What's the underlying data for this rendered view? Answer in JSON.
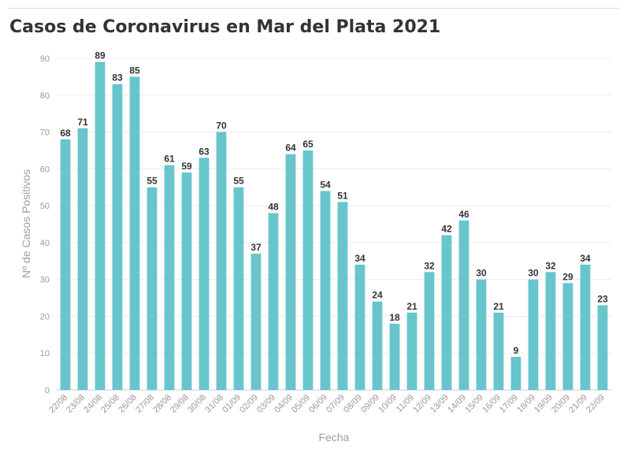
{
  "title": "Casos de Coronavirus en Mar del Plata 2021",
  "chart_data": {
    "type": "bar",
    "title": "Casos de Coronavirus en Mar del Plata 2021",
    "xlabel": "Fecha",
    "ylabel": "Nº de Casos Positivos",
    "ylim": [
      0,
      90
    ],
    "yticks": [
      0,
      10,
      20,
      30,
      40,
      50,
      60,
      70,
      80,
      90
    ],
    "grid": true,
    "bar_color": "#67c5cb",
    "categories": [
      "22/08",
      "23/08",
      "24/08",
      "25/08",
      "26/08",
      "27/08",
      "28/08",
      "29/08",
      "30/08",
      "31/08",
      "01/09",
      "02/09",
      "03/09",
      "04/09",
      "05/09",
      "06/09",
      "07/09",
      "08/09",
      "09/09",
      "10/09",
      "11/09",
      "12/09",
      "13/09",
      "14/09",
      "15/09",
      "16/09",
      "17/09",
      "18/09",
      "19/09",
      "20/09",
      "21/09",
      "22/09"
    ],
    "values": [
      68,
      71,
      89,
      83,
      85,
      55,
      61,
      59,
      63,
      70,
      55,
      37,
      48,
      64,
      65,
      54,
      51,
      34,
      24,
      18,
      21,
      32,
      42,
      46,
      30,
      21,
      9,
      30,
      32,
      29,
      34,
      23
    ]
  }
}
